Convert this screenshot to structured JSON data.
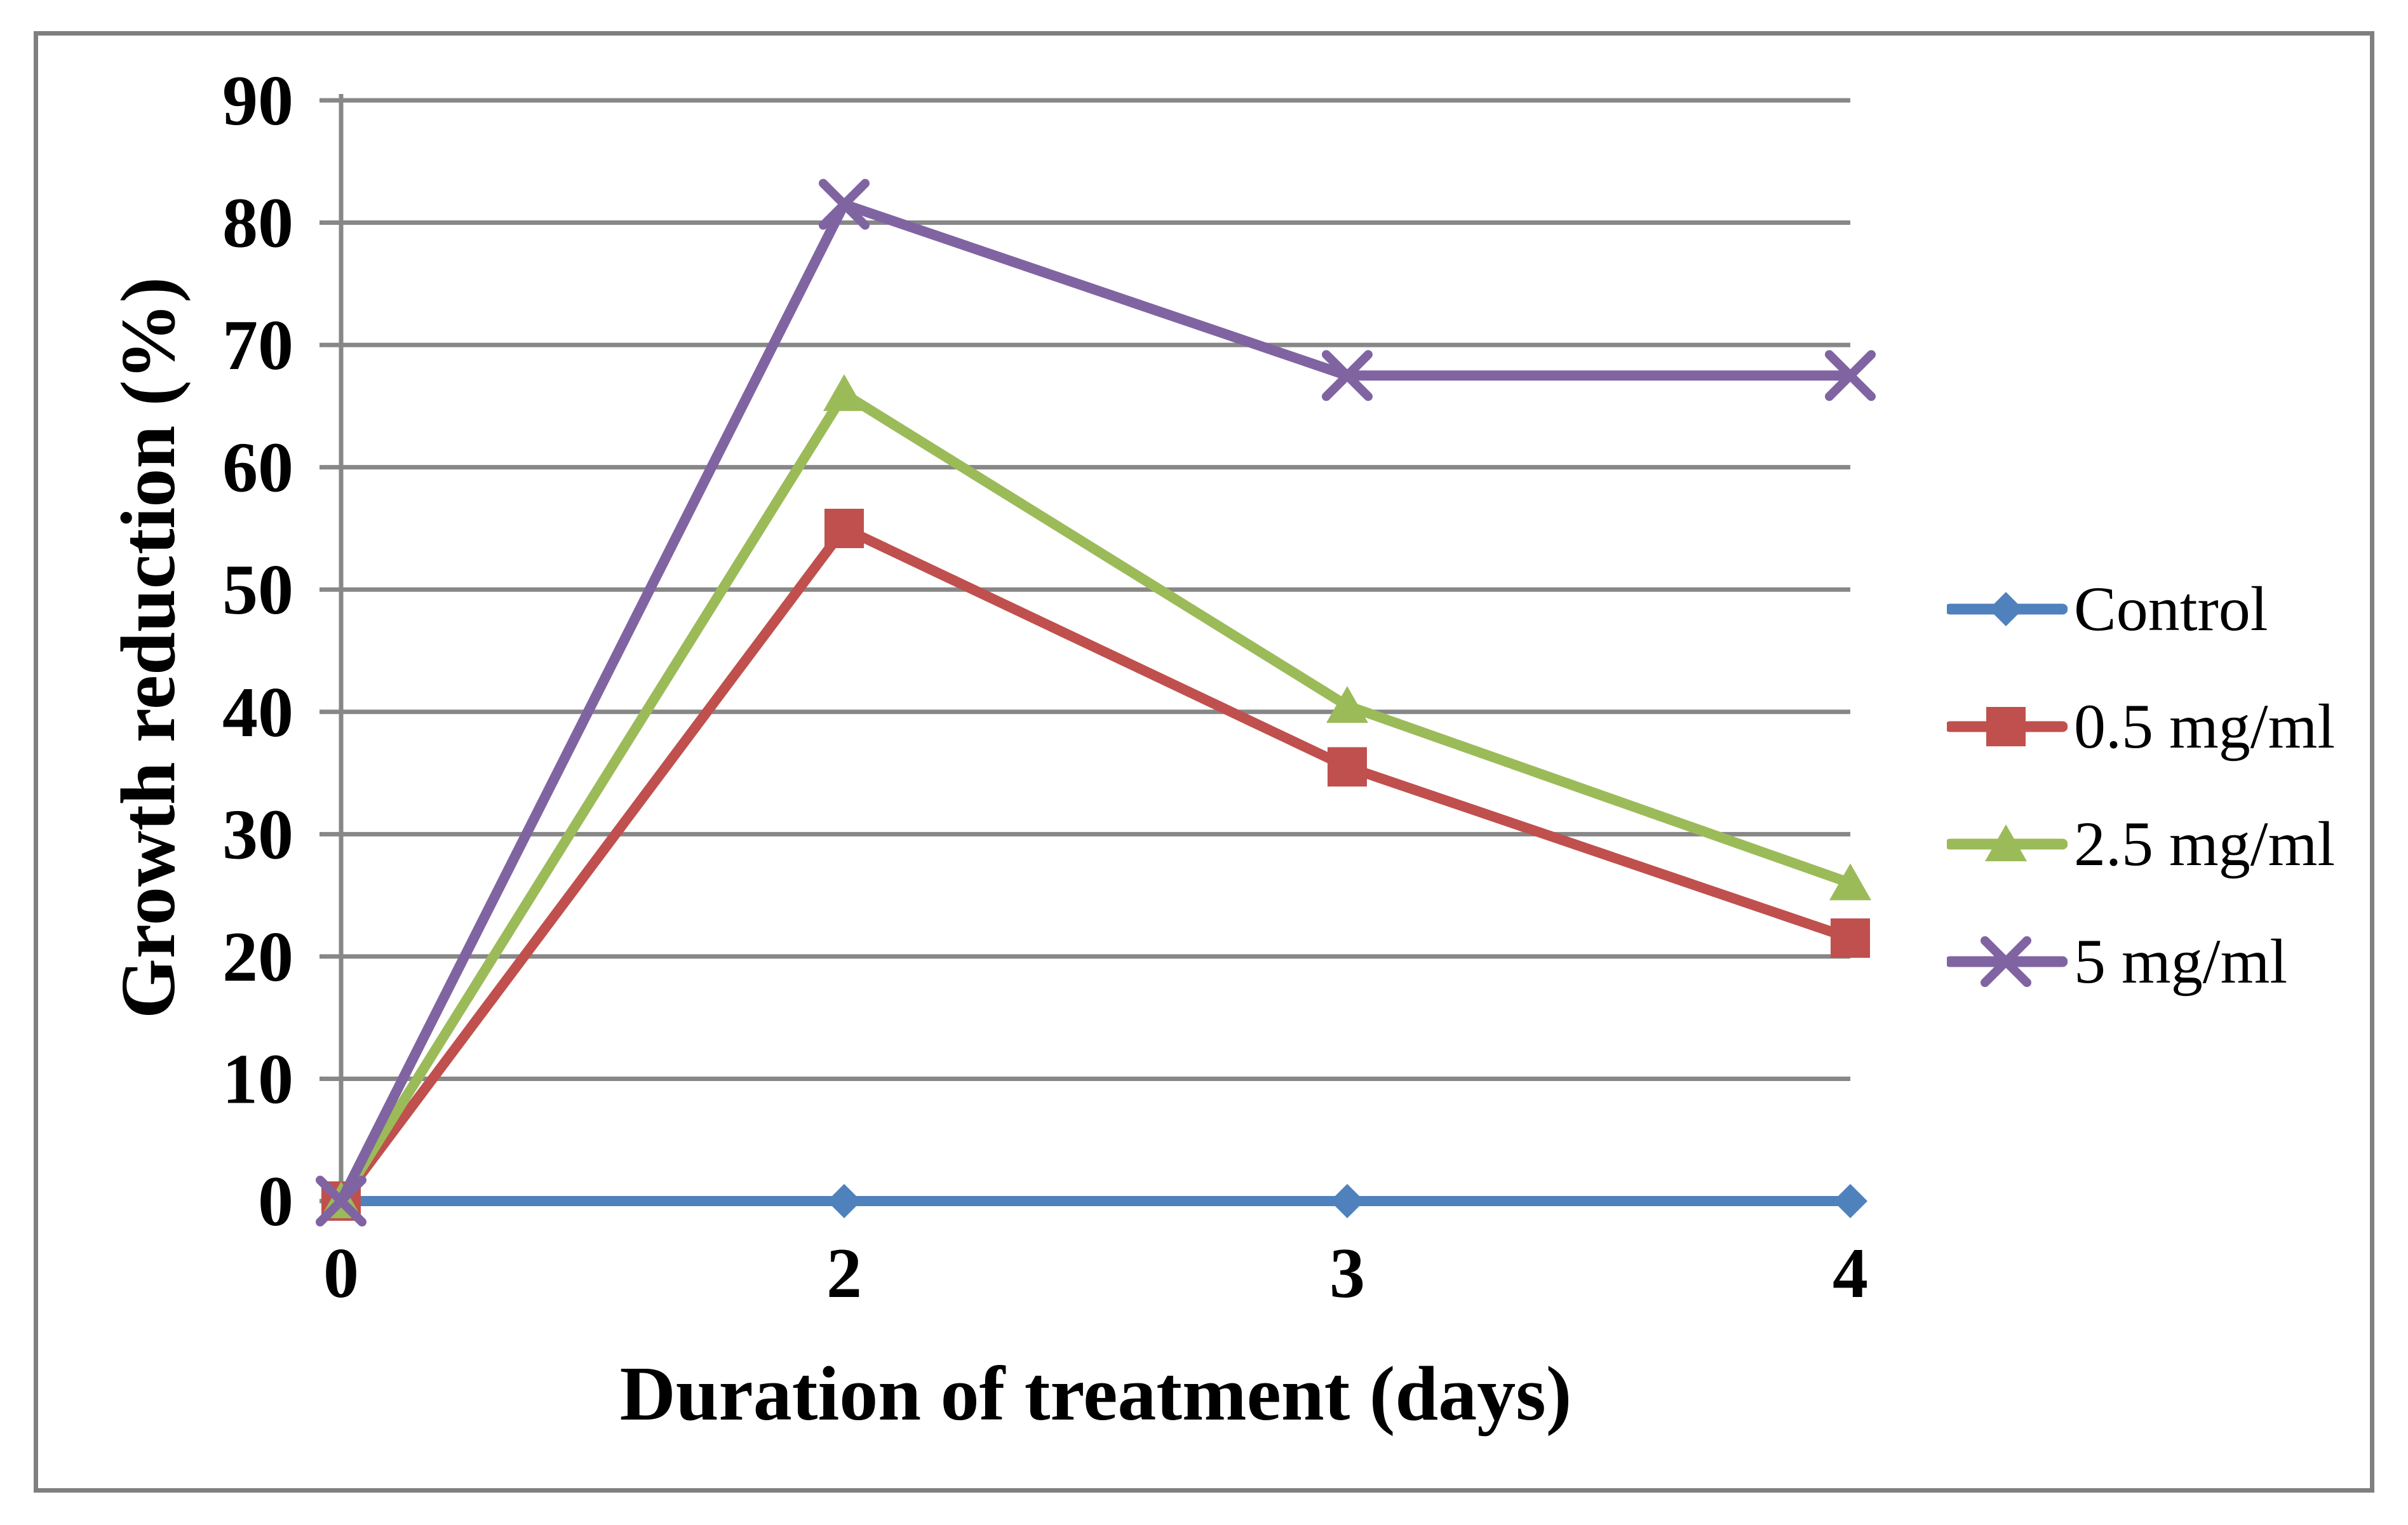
{
  "chart_data": {
    "type": "line",
    "title": "",
    "xlabel": "Duration of treatment (days)",
    "ylabel": "Growth reduction (%)",
    "categories": [
      "0",
      "2",
      "3",
      "4"
    ],
    "ylim": [
      0,
      90
    ],
    "ytick_step": 10,
    "grid": "horizontal",
    "legend_position": "right",
    "series": [
      {
        "name": "Control",
        "color": "#4F81BD",
        "marker": "diamond",
        "values": [
          0,
          0,
          0,
          0
        ]
      },
      {
        "name": "0.5 mg/ml",
        "color": "#C0504D",
        "marker": "square",
        "values": [
          0,
          55,
          35.5,
          21.5
        ]
      },
      {
        "name": "2.5 mg/ml",
        "color": "#9BBB59",
        "marker": "triangle",
        "values": [
          0,
          66,
          40.5,
          26
        ]
      },
      {
        "name": "5 mg/ml",
        "color": "#8064A2",
        "marker": "x",
        "values": [
          0,
          81.5,
          67.5,
          67.5
        ]
      }
    ],
    "colors": {
      "gridline": "#878787",
      "axis_line": "#878787",
      "text": "#000000",
      "figure_border": "#7F7F7F",
      "background": "#FFFFFF"
    }
  }
}
